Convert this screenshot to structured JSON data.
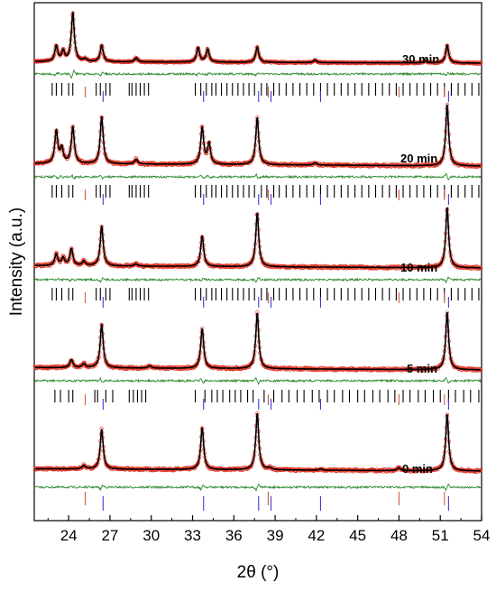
{
  "chart_data": {
    "type": "line",
    "title": "",
    "xlabel": "2θ (°)",
    "ylabel": "Intensity (a.u.)",
    "xlim": [
      21.5,
      54
    ],
    "xticks": [
      24,
      27,
      30,
      33,
      36,
      39,
      42,
      45,
      48,
      51,
      54
    ],
    "y_ticks_shown": false,
    "legend": "none",
    "colors": {
      "observed": "#e03020",
      "calculated": "#000000",
      "difference": "#2e8b2e",
      "reflections_phase_a": "#000000",
      "reflections_phase_b": "#3b3bd9",
      "reflections_phase_c": "#d0603a"
    },
    "patterns": [
      {
        "label": "0 min",
        "peaks": [
          {
            "x": 25.1,
            "h": 0.05
          },
          {
            "x": 26.4,
            "h": 0.55
          },
          {
            "x": 33.7,
            "h": 0.58
          },
          {
            "x": 37.7,
            "h": 0.78
          },
          {
            "x": 38.6,
            "h": 0.03
          },
          {
            "x": 42.3,
            "h": 0.02
          },
          {
            "x": 48.0,
            "h": 0.04
          },
          {
            "x": 51.5,
            "h": 0.78
          }
        ],
        "ticks": {
          "phase_a": [],
          "phase_b": [
            26.5,
            33.8,
            37.8,
            38.7,
            42.3,
            51.6
          ],
          "phase_c": [
            25.2,
            38.5,
            48.0,
            51.3
          ]
        }
      },
      {
        "label": "5 min",
        "peaks": [
          {
            "x": 24.2,
            "h": 0.1
          },
          {
            "x": 25.1,
            "h": 0.05
          },
          {
            "x": 26.4,
            "h": 0.55
          },
          {
            "x": 29.9,
            "h": 0.03
          },
          {
            "x": 33.7,
            "h": 0.5
          },
          {
            "x": 37.7,
            "h": 0.7
          },
          {
            "x": 51.5,
            "h": 0.72
          }
        ],
        "ticks": {
          "phase_a": [
            23.0,
            23.4,
            24.0,
            24.3,
            25.9,
            26.1,
            26.7,
            27.2,
            28.4,
            28.7,
            29.0,
            29.3,
            29.6,
            33.2,
            33.9,
            34.4,
            34.8,
            35.2,
            35.7,
            36.1,
            36.5,
            37.0,
            37.4,
            38.2,
            38.9,
            39.5,
            40.0,
            40.6,
            41.1,
            41.7,
            42.2,
            42.8,
            43.3,
            43.9,
            44.4,
            45.0,
            45.5,
            46.1,
            46.6,
            47.2,
            47.7,
            48.3,
            48.8,
            49.4,
            49.9,
            50.5,
            51.0,
            51.6,
            52.1,
            52.7,
            53.2,
            53.8
          ],
          "phase_b": [
            26.5,
            33.8,
            37.8,
            38.7,
            42.3,
            51.6
          ],
          "phase_c": [
            25.2,
            38.5,
            48.0,
            51.3
          ]
        }
      },
      {
        "label": "10 min",
        "peaks": [
          {
            "x": 23.1,
            "h": 0.15
          },
          {
            "x": 23.6,
            "h": 0.1
          },
          {
            "x": 24.2,
            "h": 0.22
          },
          {
            "x": 25.1,
            "h": 0.06
          },
          {
            "x": 26.4,
            "h": 0.52
          },
          {
            "x": 28.9,
            "h": 0.03
          },
          {
            "x": 33.7,
            "h": 0.4
          },
          {
            "x": 37.7,
            "h": 0.7
          },
          {
            "x": 51.5,
            "h": 0.78
          }
        ],
        "ticks": {
          "phase_a": [
            22.8,
            23.1,
            23.5,
            24.0,
            24.3,
            26.0,
            26.3,
            26.7,
            27.0,
            28.4,
            28.6,
            28.9,
            29.2,
            29.5,
            29.8,
            33.2,
            33.6,
            34.0,
            34.4,
            34.7,
            35.1,
            35.5,
            35.9,
            36.3,
            36.7,
            37.1,
            37.5,
            38.0,
            38.4,
            38.9,
            39.3,
            39.8,
            40.3,
            40.8,
            41.3,
            41.8,
            42.3,
            42.8,
            43.3,
            43.8,
            44.3,
            44.8,
            45.3,
            45.8,
            46.3,
            46.8,
            47.3,
            47.8,
            48.3,
            48.8,
            49.3,
            49.8,
            50.3,
            50.8,
            51.3,
            51.8,
            52.3,
            52.8,
            53.3,
            53.8
          ],
          "phase_b": [
            26.5,
            33.8,
            37.8,
            38.7,
            42.3,
            51.6
          ],
          "phase_c": [
            25.2,
            38.5,
            48.0,
            51.3
          ]
        }
      },
      {
        "label": "20 min",
        "peaks": [
          {
            "x": 23.1,
            "h": 0.4
          },
          {
            "x": 23.5,
            "h": 0.18
          },
          {
            "x": 24.3,
            "h": 0.45
          },
          {
            "x": 26.4,
            "h": 0.58
          },
          {
            "x": 28.9,
            "h": 0.06
          },
          {
            "x": 33.7,
            "h": 0.45
          },
          {
            "x": 34.2,
            "h": 0.25
          },
          {
            "x": 37.7,
            "h": 0.58
          },
          {
            "x": 41.9,
            "h": 0.03
          },
          {
            "x": 51.5,
            "h": 0.75
          }
        ],
        "ticks": {
          "phase_a": [
            22.8,
            23.1,
            23.5,
            24.0,
            24.3,
            26.0,
            26.3,
            26.7,
            27.0,
            28.4,
            28.6,
            28.9,
            29.2,
            29.5,
            29.8,
            33.2,
            33.6,
            34.0,
            34.4,
            34.7,
            35.1,
            35.5,
            35.9,
            36.3,
            36.7,
            37.1,
            37.5,
            38.0,
            38.4,
            38.9,
            39.3,
            39.8,
            40.3,
            40.8,
            41.3,
            41.8,
            42.3,
            42.8,
            43.3,
            43.8,
            44.3,
            44.8,
            45.3,
            45.8,
            46.3,
            46.8,
            47.3,
            47.8,
            48.3,
            48.8,
            49.3,
            49.8,
            50.3,
            50.8,
            51.3,
            51.8,
            52.3,
            52.8,
            53.3,
            53.8
          ],
          "phase_b": [
            26.5,
            33.8,
            37.8,
            38.7,
            42.3,
            51.6
          ],
          "phase_c": [
            25.2,
            38.5,
            48.0,
            51.3
          ]
        }
      },
      {
        "label": "30 min",
        "peaks": [
          {
            "x": 23.1,
            "h": 0.3
          },
          {
            "x": 23.6,
            "h": 0.2
          },
          {
            "x": 24.3,
            "h": 0.95
          },
          {
            "x": 25.2,
            "h": 0.05
          },
          {
            "x": 26.4,
            "h": 0.32
          },
          {
            "x": 28.9,
            "h": 0.08
          },
          {
            "x": 33.4,
            "h": 0.28
          },
          {
            "x": 34.1,
            "h": 0.25
          },
          {
            "x": 37.7,
            "h": 0.3
          },
          {
            "x": 41.9,
            "h": 0.05
          },
          {
            "x": 49.9,
            "h": 0.05
          },
          {
            "x": 51.5,
            "h": 0.35
          }
        ],
        "ticks": {
          "phase_a": [
            22.8,
            23.1,
            23.5,
            24.0,
            24.3,
            26.0,
            26.3,
            26.7,
            27.0,
            28.4,
            28.6,
            28.9,
            29.2,
            29.5,
            29.8,
            33.2,
            33.6,
            34.0,
            34.4,
            34.7,
            35.1,
            35.5,
            35.9,
            36.3,
            36.7,
            37.1,
            37.5,
            38.0,
            38.4,
            38.9,
            39.3,
            39.8,
            40.3,
            40.8,
            41.3,
            41.8,
            42.3,
            42.8,
            43.3,
            43.8,
            44.3,
            44.8,
            45.3,
            45.8,
            46.3,
            46.8,
            47.3,
            47.8,
            48.3,
            48.8,
            49.3,
            49.8,
            50.3,
            50.8,
            51.3,
            51.8,
            52.3,
            52.8,
            53.3,
            53.8
          ],
          "phase_b": [
            26.5,
            33.8,
            37.8,
            38.7,
            42.3,
            51.6
          ],
          "phase_c": [
            25.2,
            38.5,
            48.0,
            51.3
          ]
        }
      }
    ]
  }
}
